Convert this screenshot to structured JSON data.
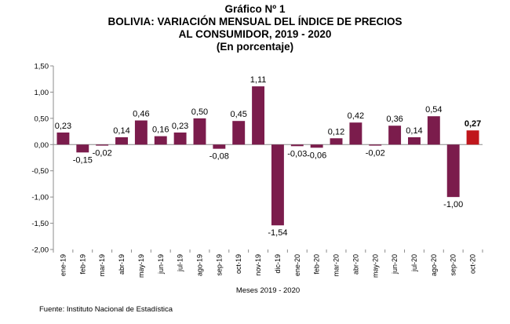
{
  "header": {
    "figure_label": "Gráfico Nº 1",
    "title_line1": "BOLIVIA: VARIACIÓN MENSUAL DEL ÍNDICE DE PRECIOS",
    "title_line2": "AL CONSUMIDOR, 2019 - 2020",
    "subtitle": "(En porcentaje)"
  },
  "source": "Fuente: Instituto Nacional de Estadística",
  "chart_data": {
    "type": "bar",
    "title": "BOLIVIA: VARIACIÓN MENSUAL DEL ÍNDICE DE PRECIOS AL CONSUMIDOR, 2019 - 2020",
    "xlabel": "Meses 2019 - 2020",
    "ylabel": "",
    "ylim": [
      -2.0,
      1.5
    ],
    "yticks": [
      1.5,
      1.0,
      0.5,
      0.0,
      -0.5,
      -1.0,
      -1.5,
      -2.0
    ],
    "ytick_labels": [
      "1,50",
      "1,00",
      "0,50",
      "0,00",
      "-0,50",
      "-1,00",
      "-1,50",
      "-2,00"
    ],
    "grid": false,
    "categories": [
      "ene-19",
      "feb-19",
      "mar-19",
      "abr-19",
      "may-19",
      "jun-19",
      "jul-19",
      "ago-19",
      "sep-19",
      "oct-19",
      "nov-19",
      "dic-19",
      "ene-20",
      "feb-20",
      "mar-20",
      "abr-20",
      "may-20",
      "jun-20",
      "jul-20",
      "ago-20",
      "sep-20",
      "oct-20"
    ],
    "values": [
      0.23,
      -0.15,
      -0.02,
      0.14,
      0.46,
      0.16,
      0.23,
      0.5,
      -0.08,
      0.45,
      1.11,
      -1.54,
      -0.03,
      -0.06,
      0.12,
      0.42,
      -0.02,
      0.36,
      0.14,
      0.54,
      -1.0,
      0.27
    ],
    "value_labels": [
      "0,23",
      "-0,15",
      "-0,02",
      "0,14",
      "0,46",
      "0,16",
      "0,23",
      "0,50",
      "-0,08",
      "0,45",
      "1,11",
      "-1,54",
      "-0,03",
      "-0,06",
      "0,12",
      "0,42",
      "-0,02",
      "0,36",
      "0,14",
      "0,54",
      "-1,00",
      "0,27"
    ],
    "colors": {
      "default": "#7b1c4c",
      "highlight": "#c0161c"
    },
    "highlight_index": 21
  }
}
